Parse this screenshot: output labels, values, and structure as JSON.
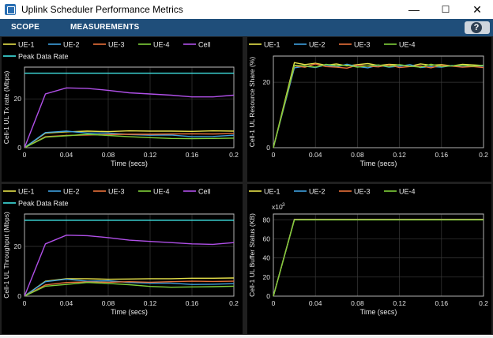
{
  "window": {
    "title": "Uplink Scheduler Performance Metrics",
    "controls": [
      "—",
      "☐",
      "✕"
    ]
  },
  "toolstrip": {
    "tabs": [
      "SCOPE",
      "MEASUREMENTS"
    ],
    "help_label": "?"
  },
  "plots": [
    {
      "ylabel": "Cell-1  UL  Tx rate  (Mbps)",
      "xlabel": "Time (secs)",
      "xticks": [
        "0",
        "0.04",
        "0.08",
        "0.12",
        "0.16",
        "0.2"
      ],
      "yticks": [
        "0",
        "20"
      ],
      "ylim": [
        0,
        33
      ],
      "xlim": [
        0,
        0.2
      ],
      "legend": [
        {
          "name": "UE-1",
          "color": "#e6e14a"
        },
        {
          "name": "UE-2",
          "color": "#3ea0e0"
        },
        {
          "name": "UE-3",
          "color": "#e8703a"
        },
        {
          "name": "UE-4",
          "color": "#7fcf3a"
        },
        {
          "name": "Cell",
          "color": "#b050e8"
        },
        {
          "name": "Peak Data Rate",
          "color": "#3fe3e3"
        }
      ],
      "chart_data": {
        "type": "line",
        "x": [
          0,
          0.02,
          0.04,
          0.06,
          0.08,
          0.1,
          0.12,
          0.14,
          0.16,
          0.18,
          0.2
        ],
        "series": [
          {
            "name": "UE-1",
            "values": [
              0,
              6.0,
              6.5,
              6.8,
              6.6,
              6.9,
              6.8,
              6.8,
              6.7,
              6.9,
              6.8
            ]
          },
          {
            "name": "UE-2",
            "values": [
              0,
              6.2,
              6.8,
              6.0,
              6.0,
              5.4,
              5.1,
              5.2,
              4.5,
              4.6,
              5.1
            ]
          },
          {
            "name": "UE-3",
            "values": [
              0,
              4.5,
              5.0,
              5.2,
              5.4,
              5.5,
              5.5,
              5.6,
              5.7,
              5.6,
              5.8
            ]
          },
          {
            "name": "UE-4",
            "values": [
              0,
              4.3,
              4.9,
              5.5,
              5.0,
              4.5,
              4.1,
              3.8,
              3.7,
              3.8,
              3.9
            ]
          },
          {
            "name": "Cell",
            "values": [
              0,
              22.0,
              24.5,
              24.3,
              23.5,
              22.5,
              22.0,
              21.5,
              20.8,
              20.8,
              21.5
            ]
          },
          {
            "name": "Peak Data Rate",
            "values": [
              30.5,
              30.5,
              30.5,
              30.5,
              30.5,
              30.5,
              30.5,
              30.5,
              30.5,
              30.5,
              30.5
            ]
          }
        ]
      }
    },
    {
      "ylabel": "Cell-1  UL  Resource  Share  (%)",
      "xlabel": "Time (secs)",
      "xticks": [
        "0",
        "0.04",
        "0.08",
        "0.12",
        "0.16",
        "0.2"
      ],
      "yticks": [
        "0",
        "20"
      ],
      "ylim": [
        0,
        28
      ],
      "xlim": [
        0,
        0.2
      ],
      "legend": [
        {
          "name": "UE-1",
          "color": "#e6e14a"
        },
        {
          "name": "UE-2",
          "color": "#3ea0e0"
        },
        {
          "name": "UE-3",
          "color": "#e8703a"
        },
        {
          "name": "UE-4",
          "color": "#7fcf3a"
        }
      ],
      "chart_data": {
        "type": "line",
        "x": [
          0,
          0.02,
          0.03,
          0.04,
          0.05,
          0.06,
          0.07,
          0.08,
          0.09,
          0.1,
          0.11,
          0.12,
          0.13,
          0.14,
          0.15,
          0.16,
          0.17,
          0.18,
          0.19,
          0.2
        ],
        "series": [
          {
            "name": "UE-1",
            "values": [
              0,
              26.0,
              25.4,
              25.8,
              25.2,
              25.6,
              25.0,
              25.4,
              25.7,
              25.1,
              25.5,
              25.3,
              24.9,
              25.6,
              25.2,
              25.4,
              25.0,
              25.5,
              25.3,
              25.1
            ]
          },
          {
            "name": "UE-2",
            "values": [
              0,
              24.4,
              24.9,
              24.5,
              25.3,
              24.7,
              25.5,
              24.8,
              24.4,
              25.2,
              24.6,
              24.9,
              25.4,
              24.5,
              24.8,
              24.6,
              25.1,
              24.7,
              24.9,
              25.0
            ]
          },
          {
            "name": "UE-3",
            "values": [
              0,
              25.0,
              24.6,
              25.6,
              24.8,
              24.6,
              24.3,
              25.2,
              24.9,
              24.7,
              25.3,
              24.5,
              24.8,
              25.0,
              24.4,
              25.2,
              24.9,
              24.6,
              24.8,
              24.5
            ]
          },
          {
            "name": "UE-4",
            "values": [
              0,
              25.2,
              25.0,
              24.6,
              25.5,
              25.1,
              25.2,
              24.6,
              25.0,
              25.3,
              24.8,
              25.4,
              24.9,
              24.6,
              25.5,
              24.8,
              25.0,
              25.2,
              24.9,
              25.2
            ]
          }
        ]
      }
    },
    {
      "ylabel": "Cell-1  UL  Throughput  (Mbps)",
      "xlabel": "Time (secs)",
      "xticks": [
        "0",
        "0.04",
        "0.08",
        "0.12",
        "0.16",
        "0.2"
      ],
      "yticks": [
        "0",
        "20"
      ],
      "ylim": [
        0,
        33
      ],
      "xlim": [
        0,
        0.2
      ],
      "legend": [
        {
          "name": "UE-1",
          "color": "#e6e14a"
        },
        {
          "name": "UE-2",
          "color": "#3ea0e0"
        },
        {
          "name": "UE-3",
          "color": "#e8703a"
        },
        {
          "name": "UE-4",
          "color": "#7fcf3a"
        },
        {
          "name": "Cell",
          "color": "#b050e8"
        },
        {
          "name": "Peak Data Rate",
          "color": "#3fe3e3"
        }
      ],
      "chart_data": {
        "type": "line",
        "x": [
          0,
          0.02,
          0.04,
          0.06,
          0.08,
          0.1,
          0.12,
          0.14,
          0.16,
          0.18,
          0.2
        ],
        "series": [
          {
            "name": "UE-1",
            "values": [
              0,
              6.0,
              7.0,
              7.0,
              6.8,
              6.9,
              7.0,
              7.0,
              7.2,
              7.2,
              7.3
            ]
          },
          {
            "name": "UE-2",
            "values": [
              0,
              5.8,
              6.8,
              6.0,
              6.2,
              5.5,
              5.2,
              5.2,
              4.7,
              4.8,
              5.0
            ]
          },
          {
            "name": "UE-3",
            "values": [
              0,
              4.5,
              5.5,
              5.7,
              5.6,
              5.8,
              5.6,
              5.8,
              6.0,
              5.9,
              6.0
            ]
          },
          {
            "name": "UE-4",
            "values": [
              0,
              4.0,
              4.7,
              5.5,
              5.1,
              4.6,
              3.9,
              3.6,
              3.7,
              3.8,
              4.0
            ]
          },
          {
            "name": "Cell",
            "values": [
              0,
              21.0,
              24.5,
              24.3,
              23.5,
              22.5,
              22.0,
              21.5,
              21.0,
              20.8,
              21.5
            ]
          },
          {
            "name": "Peak Data Rate",
            "values": [
              30.5,
              30.5,
              30.5,
              30.5,
              30.5,
              30.5,
              30.5,
              30.5,
              30.5,
              30.5,
              30.5
            ]
          }
        ]
      }
    },
    {
      "ylabel": "Cell-1  UL  Buffer Status  (KB)",
      "xlabel": "Time (secs)",
      "exponent_label": "x10",
      "exponent_sup": "3",
      "xticks": [
        "0",
        "0.04",
        "0.08",
        "0.12",
        "0.16",
        "0.2"
      ],
      "yticks": [
        "0",
        "20",
        "40",
        "60",
        "80"
      ],
      "ylim": [
        0,
        86
      ],
      "xlim": [
        0,
        0.2
      ],
      "legend": [
        {
          "name": "UE-1",
          "color": "#e6e14a"
        },
        {
          "name": "UE-2",
          "color": "#3ea0e0"
        },
        {
          "name": "UE-3",
          "color": "#e8703a"
        },
        {
          "name": "UE-4",
          "color": "#7fcf3a"
        }
      ],
      "chart_data": {
        "type": "line",
        "x": [
          0,
          0.02,
          0.2
        ],
        "series": [
          {
            "name": "UE-1",
            "values": [
              0,
              80.5,
              80.5
            ]
          },
          {
            "name": "UE-2",
            "values": [
              0,
              80.3,
              80.3
            ]
          },
          {
            "name": "UE-3",
            "values": [
              0,
              80.1,
              80.1
            ]
          },
          {
            "name": "UE-4",
            "values": [
              0,
              79.9,
              79.9
            ]
          }
        ]
      }
    }
  ]
}
